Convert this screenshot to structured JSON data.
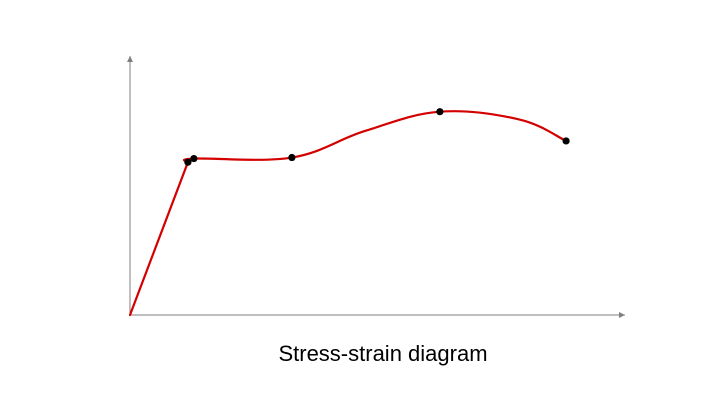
{
  "caption": "Stress-strain diagram",
  "colors": {
    "curve": "#d40000",
    "points": "#000000",
    "axes": "#7f7f7f",
    "background": "#ffffff"
  },
  "chart_data": {
    "type": "line",
    "title": "",
    "xlabel": "",
    "ylabel": "",
    "xlim": [
      0,
      100
    ],
    "ylim": [
      0,
      100
    ],
    "grid": false,
    "axis_ticks": false,
    "series": [
      {
        "points": [
          [
            0,
            0
          ],
          [
            11.7,
            59.0
          ],
          [
            12.9,
            60.4
          ],
          [
            32.7,
            60.8
          ],
          [
            47.4,
            71.0
          ],
          [
            62.6,
            78.5
          ],
          [
            78.6,
            75.5
          ],
          [
            88.1,
            67.2
          ]
        ],
        "markers": [
          [
            11.7,
            59.0
          ],
          [
            12.9,
            60.4
          ],
          [
            32.7,
            60.8
          ],
          [
            62.6,
            78.5
          ],
          [
            88.1,
            67.2
          ]
        ]
      }
    ]
  }
}
